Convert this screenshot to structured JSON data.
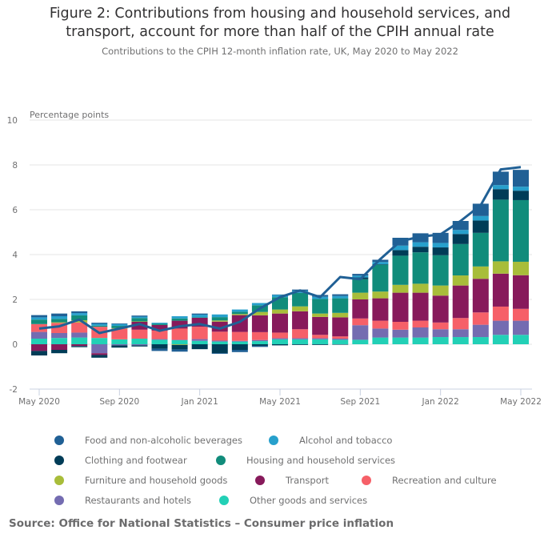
{
  "title_line1": "Figure 2: Contributions from housing and household services, and",
  "title_line2": "transport, account for more than half of the CPIH annual rate",
  "subtitle": "Contributions to the CPIH 12-month inflation rate, UK, May 2020 to May 2022",
  "source": "Source: Office for National Statistics – Consumer price inflation",
  "chart_data": {
    "type": "bar",
    "stacked": true,
    "title": "Figure 2: Contributions from housing and household services, and transport, account for more than half of the CPIH annual rate",
    "subtitle": "Contributions to the CPIH 12-month inflation rate, UK, May 2020 to May 2022",
    "xlabel": "",
    "ylabel": "Percentage points",
    "ylim": [
      -2,
      10
    ],
    "yticks": [
      -2,
      0,
      2,
      4,
      6,
      8,
      10
    ],
    "grid": true,
    "legend_position": "bottom",
    "xtick_labels": [
      "May 2020",
      "Sep 2020",
      "Jan 2021",
      "May 2021",
      "Sep 2021",
      "Jan 2022",
      "May 2022"
    ],
    "categories": [
      "May 2020",
      "Jun 2020",
      "Jul 2020",
      "Aug 2020",
      "Sep 2020",
      "Oct 2020",
      "Nov 2020",
      "Dec 2020",
      "Jan 2021",
      "Feb 2021",
      "Mar 2021",
      "Apr 2021",
      "May 2021",
      "Jun 2021",
      "Jul 2021",
      "Aug 2021",
      "Sep 2021",
      "Oct 2021",
      "Nov 2021",
      "Dec 2021",
      "Jan 2022",
      "Feb 2022",
      "Mar 2022",
      "Apr 2022",
      "May 2022"
    ],
    "series": [
      {
        "name": "Other goods and services",
        "color": "#22d0b6",
        "values": [
          0.25,
          0.28,
          0.3,
          0.28,
          0.22,
          0.25,
          0.2,
          0.18,
          0.15,
          0.12,
          0.12,
          0.14,
          0.22,
          0.22,
          0.22,
          0.2,
          0.2,
          0.3,
          0.3,
          0.3,
          0.32,
          0.32,
          0.32,
          0.42,
          0.42
        ]
      },
      {
        "name": "Restaurants and hotels",
        "color": "#746cb1",
        "values": [
          0.3,
          0.22,
          0.22,
          -0.4,
          -0.05,
          -0.05,
          0.03,
          0.02,
          0.08,
          0.04,
          0.03,
          0.05,
          0.05,
          0.05,
          0.05,
          0.05,
          0.65,
          0.4,
          0.35,
          0.45,
          0.35,
          0.35,
          0.55,
          0.63,
          0.63
        ]
      },
      {
        "name": "Recreation and culture",
        "color": "#f66068",
        "values": [
          0.35,
          0.45,
          0.45,
          0.5,
          0.48,
          0.4,
          0.38,
          0.5,
          0.55,
          0.4,
          0.4,
          0.35,
          0.25,
          0.4,
          0.15,
          0.1,
          0.3,
          0.35,
          0.35,
          0.3,
          0.3,
          0.5,
          0.55,
          0.63,
          0.53
        ]
      },
      {
        "name": "Transport",
        "color": "#871a5b",
        "values": [
          -0.3,
          -0.25,
          -0.08,
          -0.08,
          0.0,
          0.35,
          0.25,
          0.35,
          0.4,
          0.45,
          0.75,
          0.75,
          0.85,
          0.8,
          0.8,
          0.85,
          0.85,
          1.0,
          1.3,
          1.25,
          1.2,
          1.45,
          1.5,
          1.47,
          1.5
        ]
      },
      {
        "name": "Furniture and household goods",
        "color": "#a8bd3a",
        "values": [
          0.0,
          0.03,
          0.1,
          0.0,
          0.02,
          0.02,
          0.0,
          -0.03,
          0.0,
          0.05,
          0.05,
          0.15,
          0.18,
          0.22,
          0.15,
          0.2,
          0.3,
          0.3,
          0.35,
          0.4,
          0.45,
          0.45,
          0.55,
          0.55,
          0.6
        ]
      },
      {
        "name": "Housing and household services",
        "color": "#118c7b",
        "values": [
          0.2,
          0.15,
          0.22,
          0.05,
          0.1,
          0.15,
          0.05,
          0.1,
          0.02,
          0.15,
          0.1,
          0.3,
          0.55,
          0.6,
          0.65,
          0.65,
          0.6,
          1.2,
          1.3,
          1.4,
          1.35,
          1.4,
          1.5,
          2.75,
          2.75
        ]
      },
      {
        "name": "Clothing and footwear",
        "color": "#003c57",
        "values": [
          -0.2,
          -0.15,
          -0.05,
          -0.12,
          -0.1,
          -0.05,
          -0.2,
          -0.2,
          -0.22,
          -0.4,
          -0.25,
          -0.07,
          -0.05,
          -0.03,
          -0.03,
          -0.02,
          0.08,
          0.02,
          0.25,
          0.25,
          0.35,
          0.45,
          0.55,
          0.47,
          0.42
        ]
      },
      {
        "name": "Alcohol and tobacco",
        "color": "#27a0cc",
        "values": [
          0.1,
          0.12,
          0.1,
          0.08,
          0.08,
          0.06,
          0.05,
          0.1,
          0.12,
          0.12,
          0.1,
          0.1,
          0.1,
          0.1,
          0.1,
          0.1,
          0.08,
          0.1,
          0.2,
          0.2,
          0.2,
          0.18,
          0.2,
          0.18,
          0.18
        ]
      },
      {
        "name": "Food and non-alcoholic beverages",
        "color": "#206095",
        "values": [
          0.1,
          0.12,
          0.08,
          0.05,
          0.03,
          0.05,
          -0.1,
          -0.1,
          0.05,
          -0.03,
          -0.1,
          -0.05,
          0.02,
          0.05,
          0.08,
          0.08,
          0.08,
          0.1,
          0.35,
          0.4,
          0.45,
          0.4,
          0.55,
          0.6,
          0.75
        ]
      }
    ],
    "line": {
      "name": "CPIH 12-month rate",
      "color": "#206095",
      "values": [
        0.7,
        0.8,
        1.1,
        0.5,
        0.7,
        0.9,
        0.6,
        0.8,
        0.9,
        0.7,
        1.0,
        1.6,
        2.1,
        2.4,
        2.1,
        3.0,
        2.9,
        3.8,
        4.6,
        4.8,
        4.9,
        5.5,
        6.2,
        7.8,
        7.9
      ]
    }
  },
  "legend": [
    {
      "label": "Food and non-alcoholic beverages",
      "color": "#206095"
    },
    {
      "label": "Alcohol and tobacco",
      "color": "#27a0cc"
    },
    {
      "label": "Clothing and footwear",
      "color": "#003c57"
    },
    {
      "label": "Housing and household services",
      "color": "#118c7b"
    },
    {
      "label": "Furniture and household goods",
      "color": "#a8bd3a"
    },
    {
      "label": "Transport",
      "color": "#871a5b"
    },
    {
      "label": "Recreation and culture",
      "color": "#f66068"
    },
    {
      "label": "Restaurants and hotels",
      "color": "#746cb1"
    },
    {
      "label": "Other goods and services",
      "color": "#22d0b6"
    }
  ]
}
